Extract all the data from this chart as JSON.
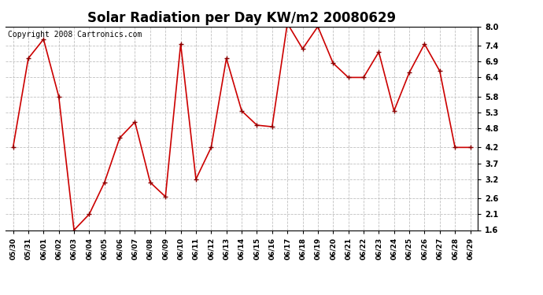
{
  "title": "Solar Radiation per Day KW/m2 20080629",
  "copyright": "Copyright 2008 Cartronics.com",
  "dates": [
    "05/30",
    "05/31",
    "06/01",
    "06/02",
    "06/03",
    "06/04",
    "06/05",
    "06/06",
    "06/07",
    "06/08",
    "06/09",
    "06/10",
    "06/11",
    "06/12",
    "06/13",
    "06/14",
    "06/15",
    "06/16",
    "06/17",
    "06/18",
    "06/19",
    "06/20",
    "06/21",
    "06/22",
    "06/23",
    "06/24",
    "06/25",
    "06/26",
    "06/27",
    "06/28",
    "06/29"
  ],
  "values": [
    4.2,
    7.0,
    7.6,
    5.8,
    1.6,
    2.1,
    3.1,
    4.5,
    5.0,
    3.1,
    2.65,
    7.45,
    3.2,
    4.2,
    7.0,
    5.35,
    4.9,
    4.85,
    8.1,
    7.3,
    8.0,
    6.85,
    6.4,
    6.4,
    7.2,
    5.35,
    6.55,
    7.45,
    6.6,
    4.2,
    4.2
  ],
  "line_color": "#cc0000",
  "marker": "+",
  "marker_color": "#880000",
  "bg_color": "#ffffff",
  "plot_bg_color": "#ffffff",
  "grid_color": "#c0c0c0",
  "yticks": [
    1.6,
    2.1,
    2.6,
    3.2,
    3.7,
    4.2,
    4.8,
    5.3,
    5.8,
    6.4,
    6.9,
    7.4,
    8.0
  ],
  "ylim": [
    1.6,
    8.0
  ],
  "title_fontsize": 12,
  "copyright_fontsize": 7,
  "tick_fontsize": 7,
  "xtick_fontsize": 6.5
}
